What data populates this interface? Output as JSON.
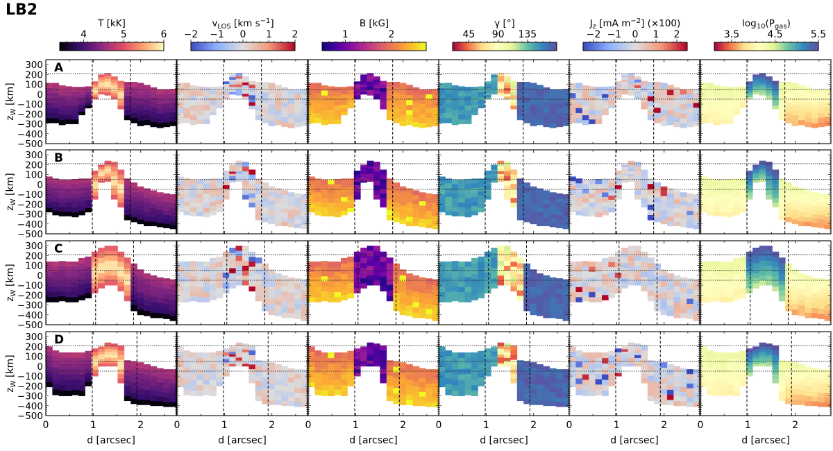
{
  "figure_title": "LB2",
  "chart_data": {
    "type": "heatmap",
    "title": "LB2",
    "xlabel": "d [arcsec]",
    "ylabel": "z_W [km]",
    "ylabel_main": "z",
    "ylabel_sub": "W",
    "ylabel_unit": " [km]",
    "xlim": [
      0,
      2.75
    ],
    "ylim": [
      -500,
      350
    ],
    "x_ticks": [
      0,
      1,
      2
    ],
    "x_tick_labels": [
      "0",
      "1",
      "2"
    ],
    "y_ticks": [
      300,
      200,
      100,
      0,
      -100,
      -200,
      -300,
      -400,
      -500
    ],
    "y_tick_labels": [
      "300",
      "200",
      "100",
      "0",
      "−100",
      "−200",
      "−300",
      "−400",
      "−500"
    ],
    "dotted_hlines": [
      210,
      50,
      -50
    ],
    "grid": false,
    "rows": [
      {
        "label": "A",
        "dashed_vlines": [
          0.98,
          1.78
        ],
        "top": [
          115,
          115,
          90,
          80,
          75,
          75,
          80,
          130,
          200,
          215,
          180,
          135,
          125,
          125,
          115,
          95,
          70,
          50,
          50,
          55
        ],
        "bottom": [
          -290,
          -290,
          -310,
          -300,
          -300,
          -210,
          -140,
          -50,
          0,
          -10,
          -50,
          -150,
          -260,
          -290,
          -320,
          -310,
          -330,
          -340,
          -330,
          -320
        ],
        "hot_lo": 7,
        "hot_hi": 11
      },
      {
        "label": "B",
        "dashed_vlines": [
          0.98,
          1.78
        ],
        "top": [
          80,
          60,
          50,
          50,
          55,
          60,
          60,
          140,
          200,
          240,
          230,
          150,
          60,
          20,
          -20,
          -40,
          -60,
          -80,
          -90,
          -100
        ],
        "bottom": [
          -280,
          -310,
          -320,
          -320,
          -330,
          -310,
          -280,
          -150,
          20,
          30,
          -150,
          -230,
          -360,
          -380,
          -400,
          -420,
          -420,
          -430,
          -440,
          -450
        ],
        "hot_lo": 7,
        "hot_hi": 11
      },
      {
        "label": "C",
        "dashed_vlines": [
          1.05,
          1.85
        ],
        "top": [
          140,
          140,
          145,
          140,
          140,
          175,
          190,
          240,
          280,
          300,
          300,
          240,
          180,
          120,
          60,
          20,
          0,
          -20,
          -30,
          -40
        ],
        "bottom": [
          -270,
          -270,
          -260,
          -270,
          -270,
          -250,
          -230,
          -180,
          -130,
          -100,
          -100,
          -160,
          -260,
          -360,
          -400,
          -410,
          -430,
          -430,
          -440,
          -460
        ],
        "hot_lo": 7,
        "hot_hi": 12
      },
      {
        "label": "D",
        "dashed_vlines": [
          0.98,
          1.92
        ],
        "top": [
          200,
          160,
          140,
          140,
          140,
          140,
          155,
          180,
          200,
          240,
          230,
          210,
          60,
          50,
          40,
          20,
          0,
          -20,
          -30,
          -30
        ],
        "bottom": [
          -210,
          -290,
          -300,
          -300,
          -290,
          -300,
          -200,
          -100,
          0,
          0,
          0,
          -170,
          -350,
          -380,
          -390,
          -390,
          -400,
          -400,
          -410,
          -410
        ],
        "hot_lo": 7,
        "hot_hi": 11
      }
    ],
    "columns": [
      {
        "name": "T",
        "label": "T [kK]",
        "cmap": "inferno",
        "vmin": 3.4,
        "vmax": 6,
        "cbar_ticks": [
          4,
          5,
          6
        ],
        "cbar_tick_labels": [
          "4",
          "5",
          "6"
        ],
        "colors": [
          "#000004",
          "#3b0f70",
          "#8c2981",
          "#de4968",
          "#fe9f6d",
          "#fcfdbf"
        ]
      },
      {
        "name": "vLOS",
        "label": "v_LOS [km s^-1]",
        "label_main": "v",
        "label_sub": "LOS",
        "label_unit": " [km s",
        "label_sup": "−1",
        "label_end": "]",
        "cmap": "coolwarm",
        "vmin": -2,
        "vmax": 2,
        "cbar_ticks": [
          -2,
          -1,
          0,
          1,
          2
        ],
        "cbar_tick_labels": [
          "−2",
          "−1",
          "0",
          "1",
          "2"
        ],
        "colors": [
          "#3b4cc0",
          "#8db0fe",
          "#dddddd",
          "#f4987a",
          "#b40426"
        ]
      },
      {
        "name": "B",
        "label": "B [kG]",
        "cmap": "plasma",
        "vmin": 0.5,
        "vmax": 2.75,
        "cbar_ticks": [
          1,
          2
        ],
        "cbar_tick_labels": [
          "1",
          "2"
        ],
        "colors": [
          "#0d0887",
          "#6a00a8",
          "#b12a90",
          "#e16462",
          "#fca636",
          "#f0f921"
        ]
      },
      {
        "name": "gamma",
        "label": "γ [°]",
        "cmap": "Spectral",
        "vmin": 20,
        "vmax": 180,
        "cbar_ticks": [
          45,
          90,
          135
        ],
        "cbar_tick_labels": [
          "45",
          "90",
          "135"
        ],
        "colors": [
          "#9e0142",
          "#f46d43",
          "#fee08b",
          "#ffffbf",
          "#e6f598",
          "#66c2a5",
          "#3288bd",
          "#5e4fa2"
        ]
      },
      {
        "name": "Jz",
        "label": "J_z [mA m^-2] (×100)",
        "label_main": "J",
        "label_sub": "z",
        "label_unit": " [mA m",
        "label_sup": "−2",
        "label_end": "] (×100)",
        "cmap": "coolwarm",
        "vmin": -2.5,
        "vmax": 2.5,
        "cbar_ticks": [
          -2,
          -1,
          0,
          1,
          2
        ],
        "cbar_tick_labels": [
          "−2",
          "−1",
          "0",
          "1",
          "2"
        ],
        "colors": [
          "#3b4cc0",
          "#8db0fe",
          "#dddddd",
          "#f4987a",
          "#b40426"
        ]
      },
      {
        "name": "logPgas",
        "label": "log10(P_gas)",
        "label_main": "log",
        "label_sub": "10",
        "label_unit": "(P",
        "label_sub2": "gas",
        "label_end": ")",
        "cmap": "Spectral",
        "vmin": 3.1,
        "vmax": 5.5,
        "cbar_ticks": [
          3.5,
          4.5,
          5.5
        ],
        "cbar_tick_labels": [
          "3.5",
          "4.5",
          "5.5"
        ],
        "colors": [
          "#9e0142",
          "#f46d43",
          "#fee08b",
          "#ffffbf",
          "#e6f598",
          "#66c2a5",
          "#3288bd",
          "#5e4fa2"
        ]
      }
    ]
  }
}
